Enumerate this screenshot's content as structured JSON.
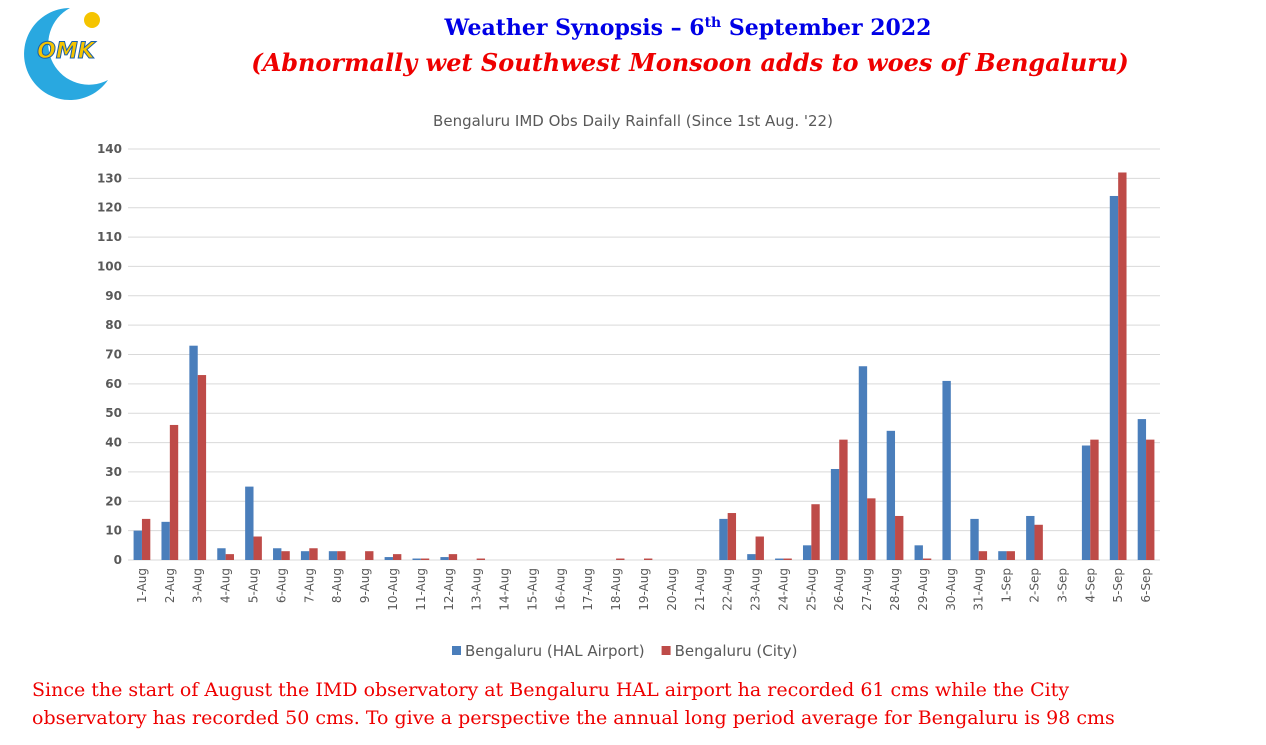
{
  "header": {
    "logo": "OMK",
    "title_parts": [
      "Weather Synopsis – 6",
      "th",
      " September 2022"
    ],
    "subtitle": "(Abnormally wet Southwest Monsoon adds to woes of Bengaluru)"
  },
  "chart_data": {
    "type": "bar",
    "title": "Bengaluru IMD Obs Daily Rainfall (Since 1st Aug. '22)",
    "categories": [
      "1-Aug",
      "2-Aug",
      "3-Aug",
      "4-Aug",
      "5-Aug",
      "6-Aug",
      "7-Aug",
      "8-Aug",
      "9-Aug",
      "10-Aug",
      "11-Aug",
      "12-Aug",
      "13-Aug",
      "14-Aug",
      "15-Aug",
      "16-Aug",
      "17-Aug",
      "18-Aug",
      "19-Aug",
      "20-Aug",
      "21-Aug",
      "22-Aug",
      "23-Aug",
      "24-Aug",
      "25-Aug",
      "26-Aug",
      "27-Aug",
      "28-Aug",
      "29-Aug",
      "30-Aug",
      "31-Aug",
      "1-Sep",
      "2-Sep",
      "3-Sep",
      "4-Sep",
      "5-Sep",
      "6-Sep"
    ],
    "series": [
      {
        "name": "Bengaluru (HAL Airport)",
        "color": "#4a7ebb",
        "values": [
          10,
          13,
          73,
          4,
          25,
          4,
          3,
          3,
          0,
          1,
          0.5,
          1,
          0,
          0,
          0,
          0,
          0,
          0,
          0,
          0,
          0,
          14,
          2,
          0.5,
          5,
          31,
          66,
          44,
          5,
          61,
          14,
          3,
          15,
          0,
          39,
          124,
          48
        ]
      },
      {
        "name": "Bengaluru (City)",
        "color": "#be4b48",
        "values": [
          14,
          46,
          63,
          2,
          8,
          3,
          4,
          3,
          3,
          2,
          0.5,
          2,
          0.5,
          0,
          0,
          0,
          0,
          0.5,
          0.5,
          0,
          0,
          16,
          8,
          0.5,
          19,
          41,
          21,
          15,
          0.5,
          0,
          3,
          3,
          12,
          0,
          41,
          132,
          41
        ]
      }
    ],
    "ylim": [
      0,
      140
    ],
    "yticks": [
      0,
      10,
      20,
      30,
      40,
      50,
      60,
      70,
      80,
      90,
      100,
      110,
      120,
      130,
      140
    ],
    "grid": true,
    "legend": "bottom"
  },
  "footer": {
    "lines": [
      "Since the start of August the IMD observatory at Bengaluru HAL airport ha recorded 61 cms while the City",
      "observatory has recorded 50 cms. To give a perspective the annual long period average for Bengaluru is 98 cms"
    ]
  }
}
